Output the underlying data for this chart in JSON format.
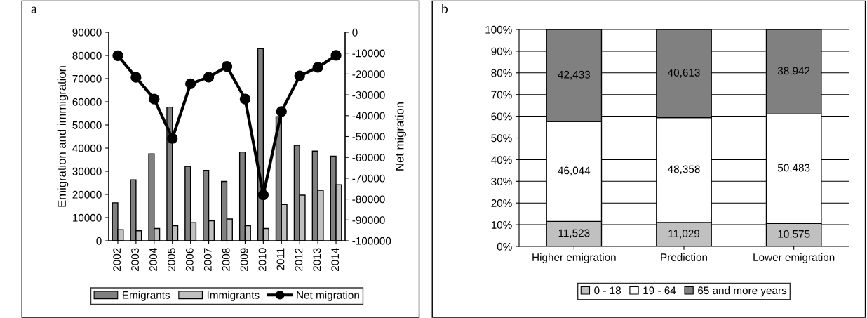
{
  "chart_data": [
    {
      "type": "bar",
      "annotations": [
        "a"
      ],
      "ylabel": "Emigration and immigration",
      "y2label": "Net migration",
      "categories": [
        "2002",
        "2003",
        "2004",
        "2005",
        "2006",
        "2007",
        "2008",
        "2009",
        "2010",
        "2011",
        "2012",
        "2013",
        "2014"
      ],
      "series": [
        {
          "name": "Emigrants",
          "color": "#808080",
          "values": [
            16400,
            26300,
            37500,
            57700,
            32100,
            30400,
            25600,
            38300,
            82900,
            53600,
            41200,
            38700,
            36500
          ]
        },
        {
          "name": "Immigrants",
          "color": "#c0c0c0",
          "values": [
            4800,
            4300,
            5300,
            6500,
            7800,
            8600,
            9400,
            6500,
            5300,
            15700,
            19700,
            21800,
            24200
          ]
        },
        {
          "name": "Net migration",
          "type": "line",
          "axis": "y2",
          "color": "#000000",
          "marker": "circle",
          "line_style": "solid",
          "values": [
            -11200,
            -21600,
            -32000,
            -50900,
            -24700,
            -21500,
            -16400,
            -32000,
            -78000,
            -38000,
            -20900,
            -16800,
            -11100
          ]
        }
      ],
      "ylim": [
        0,
        90000
      ],
      "yticks": [
        0,
        10000,
        20000,
        30000,
        40000,
        50000,
        60000,
        70000,
        80000,
        90000
      ],
      "y2lim": [
        -100000,
        0
      ],
      "y2ticks": [
        -100000,
        -90000,
        -80000,
        -70000,
        -60000,
        -50000,
        -40000,
        -30000,
        -20000,
        -10000,
        0
      ],
      "grid": false,
      "legend": "bottom"
    },
    {
      "type": "bar",
      "stacked": true,
      "categories": [
        "Higher emigration",
        "Prediction",
        "Lower emigration"
      ],
      "series": [
        {
          "name": "0 - 18",
          "color": "#c0c0c0",
          "values": [
            11.523,
            11.029,
            10.575
          ]
        },
        {
          "name": "19 - 64",
          "color": "#ffffff",
          "values": [
            46.044,
            48.358,
            50.483
          ]
        },
        {
          "name": "65 and more years",
          "color": "#808080",
          "values": [
            42.433,
            40.613,
            38.942
          ]
        }
      ],
      "annotations": [
        "b",
        "11,523",
        "11,029",
        "10,575",
        "46,044",
        "48,358",
        "50,483",
        "42,433",
        "40,613",
        "38,942"
      ],
      "ylim": [
        0,
        100
      ],
      "yticks": [
        {
          "value": 0,
          "label": "0%"
        },
        {
          "value": 10,
          "label": "10%"
        },
        {
          "value": 20,
          "label": "20%"
        },
        {
          "value": 30,
          "label": "30%"
        },
        {
          "value": 40,
          "label": "40%"
        },
        {
          "value": 50,
          "label": "50%"
        },
        {
          "value": 60,
          "label": "60%"
        },
        {
          "value": 70,
          "label": "70%"
        },
        {
          "value": 80,
          "label": "80%"
        },
        {
          "value": 90,
          "label": "90%"
        },
        {
          "value": 100,
          "label": "100%"
        }
      ],
      "grid": "y",
      "legend": "bottom"
    }
  ]
}
